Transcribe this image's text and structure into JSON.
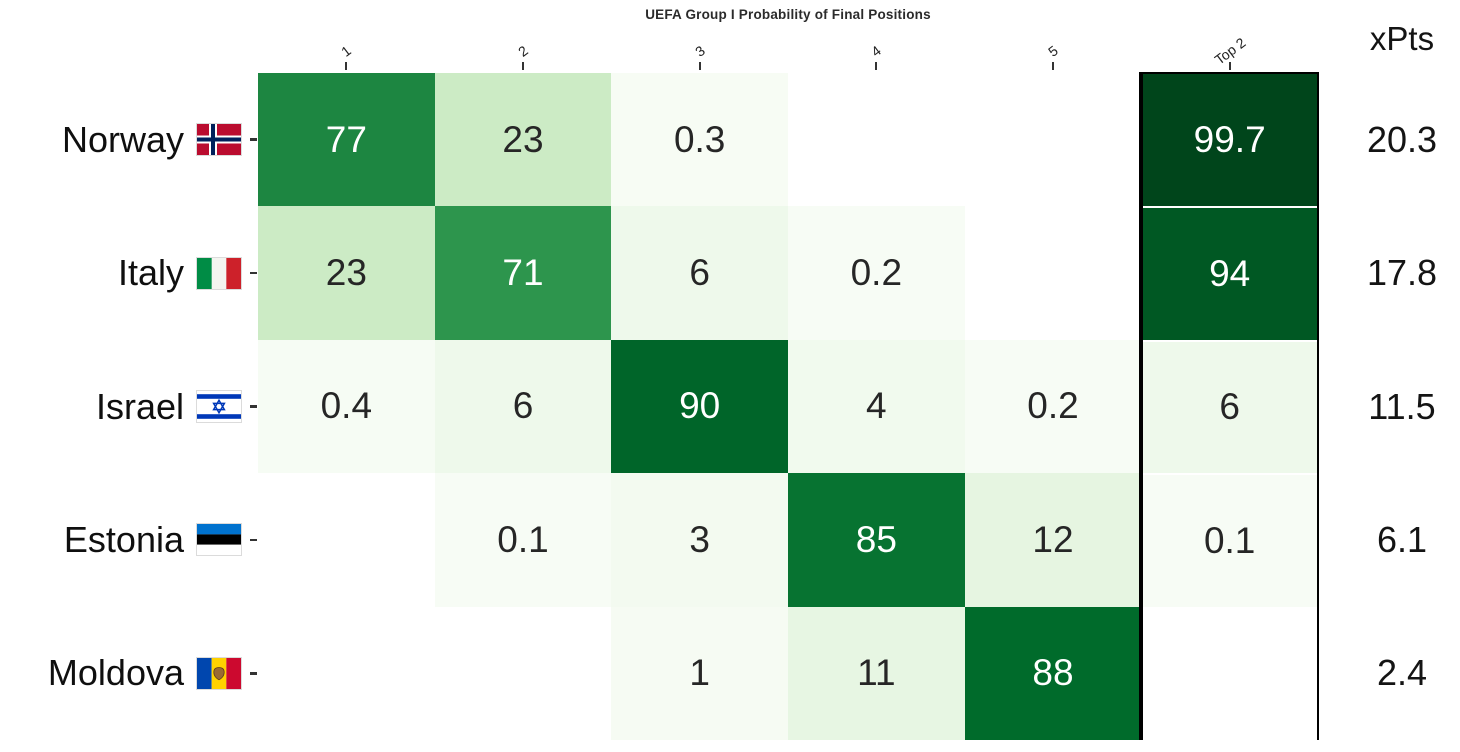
{
  "chart_data": {
    "type": "heatmap",
    "title": "UEFA Group I Probability of Final Positions",
    "xpts_label": "xPts",
    "columns": [
      "1",
      "2",
      "3",
      "4",
      "5",
      "Top 2"
    ],
    "rows": [
      "Norway",
      "Italy",
      "Israel",
      "Estonia",
      "Moldova"
    ],
    "series": [
      {
        "team": "Norway",
        "flag": "norway-flag-icon",
        "position_probs": [
          77,
          23,
          0.3,
          null,
          null
        ],
        "top2": 99.7,
        "xpts": 20.3
      },
      {
        "team": "Italy",
        "flag": "italy-flag-icon",
        "position_probs": [
          23,
          71,
          6,
          0.2,
          null
        ],
        "top2": 94,
        "xpts": 17.8
      },
      {
        "team": "Israel",
        "flag": "israel-flag-icon",
        "position_probs": [
          0.4,
          6,
          90,
          4,
          0.2
        ],
        "top2": 6,
        "xpts": 11.5
      },
      {
        "team": "Estonia",
        "flag": "estonia-flag-icon",
        "position_probs": [
          null,
          0.1,
          3,
          85,
          12
        ],
        "top2": 0.1,
        "xpts": 6.1
      },
      {
        "team": "Moldova",
        "flag": "moldova-flag-icon",
        "position_probs": [
          null,
          null,
          1,
          11,
          88
        ],
        "top2": null,
        "xpts": 2.4
      }
    ],
    "value_range": [
      0,
      100
    ],
    "colormap": {
      "name": "Greens",
      "stops": [
        "#f7fcf5",
        "#e5f5e0",
        "#c7e9c0",
        "#a1d99b",
        "#74c476",
        "#41ab5d",
        "#238b45",
        "#006d2c",
        "#00441b"
      ]
    },
    "empty_cell_color": "#ffffff",
    "cell_text_dark": "#262626",
    "cell_text_light": "#ffffff",
    "light_text_threshold": 50,
    "top2_border_color": "#000000",
    "grid": "off",
    "legend_position": "none"
  }
}
